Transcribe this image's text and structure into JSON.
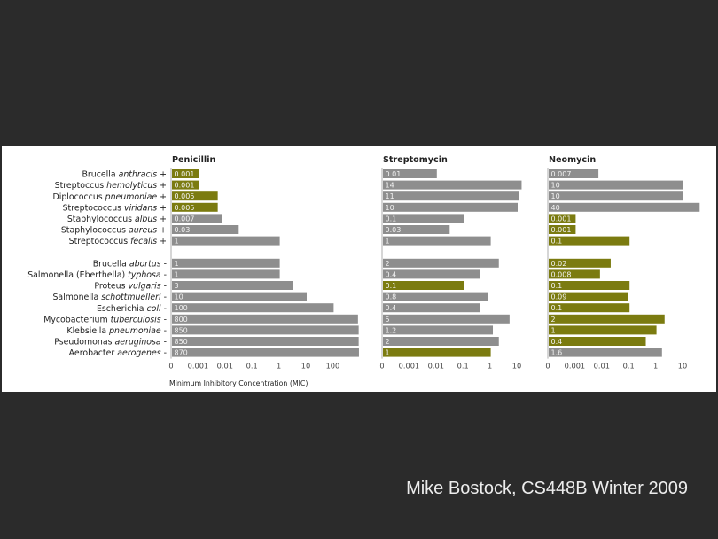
{
  "credit": "Mike Bostock, CS448B Winter 2009",
  "colors": {
    "background": "#2b2b2b",
    "panel": "#ffffff",
    "bar_default": "#8e8e8e",
    "bar_highlight": "#7b7b10",
    "text": "#222222",
    "value_text": "#f2f2f2"
  },
  "chart_data": {
    "type": "bar",
    "orientation": "horizontal",
    "xscale": "log",
    "xlabel": "Minimum Inhibitory Concentration (MIC)",
    "bacteria": [
      {
        "genus": "Brucella",
        "species": "anthracis",
        "gram": "+"
      },
      {
        "genus": "Streptoccus",
        "species": "hemolyticus",
        "gram": "+"
      },
      {
        "genus": "Diplococcus",
        "species": "pneumoniae",
        "gram": "+"
      },
      {
        "genus": "Streptococcus",
        "species": "viridans",
        "gram": "+"
      },
      {
        "genus": "Staphylococcus",
        "species": "albus",
        "gram": "+"
      },
      {
        "genus": "Staphylococcus",
        "species": "aureus",
        "gram": "+"
      },
      {
        "genus": "Streptococcus",
        "species": "fecalis",
        "gram": "+"
      },
      {
        "genus": "Brucella",
        "species": "abortus",
        "gram": "-"
      },
      {
        "genus": "Salmonella (Eberthella)",
        "species": "typhosa",
        "gram": "-"
      },
      {
        "genus": "Proteus",
        "species": "vulgaris",
        "gram": "-"
      },
      {
        "genus": "Salmonella",
        "species": "schottmuelleri",
        "gram": "-"
      },
      {
        "genus": "Escherichia",
        "species": "coli",
        "gram": "-"
      },
      {
        "genus": "Mycobacterium",
        "species": "tuberculosis",
        "gram": "-"
      },
      {
        "genus": "Klebsiella",
        "species": "pneumoniae",
        "gram": "-"
      },
      {
        "genus": "Pseudomonas",
        "species": "aeruginosa",
        "gram": "-"
      },
      {
        "genus": "Aerobacter",
        "species": "aerogenes",
        "gram": "-"
      }
    ],
    "panels": [
      {
        "name": "Penicillin",
        "ticks": [
          "0",
          "0.001",
          "0.01",
          "0.1",
          "1",
          "10",
          "100"
        ],
        "values": [
          0.001,
          0.001,
          0.005,
          0.005,
          0.007,
          0.03,
          1,
          1,
          1,
          3,
          10,
          100,
          800,
          850,
          850,
          870
        ],
        "highlight": [
          true,
          true,
          true,
          true,
          false,
          false,
          false,
          false,
          false,
          false,
          false,
          false,
          false,
          false,
          false,
          false
        ]
      },
      {
        "name": "Streptomycin",
        "ticks": [
          "0",
          "0.001",
          "0.01",
          "0.1",
          "1",
          "10"
        ],
        "values": [
          0.01,
          14,
          11,
          10,
          0.1,
          0.03,
          1,
          2,
          0.4,
          0.1,
          0.8,
          0.4,
          5,
          1.2,
          2,
          1
        ],
        "highlight": [
          false,
          false,
          false,
          false,
          false,
          false,
          false,
          false,
          false,
          true,
          false,
          false,
          false,
          false,
          false,
          true
        ]
      },
      {
        "name": "Neomycin",
        "ticks": [
          "0",
          "0.001",
          "0.01",
          "0.1",
          "1",
          "10"
        ],
        "values": [
          0.007,
          10,
          10,
          40,
          0.001,
          0.001,
          0.1,
          0.02,
          0.008,
          0.1,
          0.09,
          0.1,
          2,
          1,
          0.4,
          1.6
        ],
        "highlight": [
          false,
          false,
          false,
          false,
          true,
          true,
          true,
          true,
          true,
          true,
          true,
          true,
          true,
          true,
          true,
          false
        ]
      }
    ]
  }
}
